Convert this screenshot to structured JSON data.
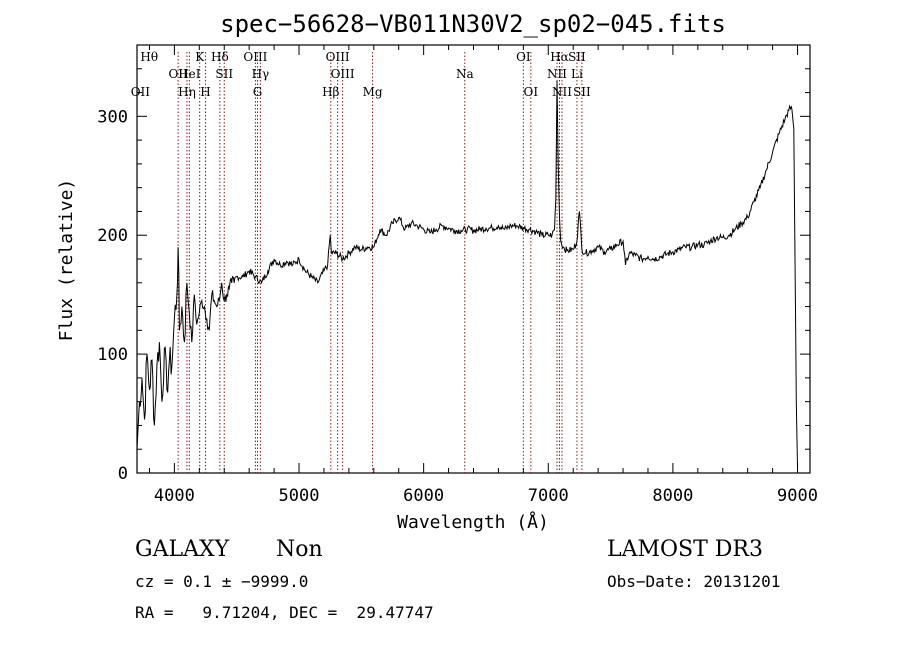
{
  "chart_data": {
    "type": "line",
    "title": "spec−56628−VB011N30V2_sp02−045.fits",
    "xlabel": "Wavelength (Å)",
    "ylabel": "Flux (relative)",
    "xlim": [
      3700,
      9100
    ],
    "ylim": [
      0,
      360
    ],
    "xticks": [
      4000,
      5000,
      6000,
      7000,
      8000,
      9000
    ],
    "yticks": [
      0,
      100,
      200,
      300
    ],
    "grid": false,
    "series": [
      {
        "x": [
          3700,
          3720,
          3740,
          3760,
          3780,
          3800,
          3820,
          3840,
          3860,
          3880,
          3900,
          3920,
          3940,
          3960,
          3980,
          4000,
          4020,
          4030,
          4040,
          4060,
          4080,
          4100,
          4120,
          4140,
          4160,
          4180,
          4200,
          4220,
          4240,
          4260,
          4280,
          4300,
          4320,
          4340,
          4360,
          4380,
          4400,
          4420,
          4440,
          4460,
          4480,
          4500,
          4550,
          4600,
          4650,
          4700,
          4750,
          4800,
          4850,
          4900,
          4950,
          5000,
          5050,
          5100,
          5150,
          5200,
          5230,
          5250,
          5260,
          5300,
          5350,
          5400,
          5450,
          5500,
          5550,
          5600,
          5650,
          5700,
          5750,
          5800,
          5850,
          5900,
          5950,
          6000,
          6050,
          6100,
          6150,
          6200,
          6250,
          6300,
          6350,
          6400,
          6450,
          6500,
          6550,
          6600,
          6650,
          6700,
          6750,
          6800,
          6850,
          6900,
          6950,
          7000,
          7030,
          7050,
          7060,
          7070,
          7080,
          7090,
          7100,
          7120,
          7150,
          7200,
          7230,
          7240,
          7250,
          7270,
          7300,
          7350,
          7400,
          7450,
          7500,
          7550,
          7600,
          7620,
          7650,
          7700,
          7750,
          7800,
          7850,
          7900,
          7950,
          8000,
          8050,
          8100,
          8150,
          8200,
          8250,
          8300,
          8350,
          8400,
          8450,
          8500,
          8550,
          8600,
          8650,
          8700,
          8750,
          8800,
          8850,
          8900,
          8930,
          8950,
          8960,
          8970,
          8980,
          8990,
          9000
        ],
        "y": [
          20,
          60,
          80,
          45,
          100,
          70,
          95,
          40,
          90,
          110,
          60,
          105,
          70,
          95,
          90,
          130,
          150,
          190,
          120,
          140,
          110,
          160,
          135,
          110,
          150,
          125,
          135,
          145,
          140,
          130,
          120,
          150,
          145,
          140,
          145,
          160,
          145,
          150,
          155,
          160,
          160,
          165,
          165,
          170,
          165,
          160,
          170,
          180,
          175,
          178,
          175,
          180,
          170,
          165,
          160,
          170,
          175,
          200,
          185,
          185,
          180,
          185,
          190,
          188,
          190,
          190,
          205,
          200,
          210,
          215,
          205,
          210,
          208,
          205,
          202,
          205,
          208,
          206,
          204,
          204,
          205,
          204,
          205,
          206,
          206,
          208,
          205,
          208,
          208,
          206,
          205,
          203,
          200,
          200,
          200,
          205,
          230,
          330,
          260,
          215,
          195,
          190,
          187,
          188,
          195,
          210,
          220,
          188,
          185,
          187,
          190,
          186,
          188,
          192,
          195,
          175,
          185,
          183,
          180,
          182,
          180,
          182,
          184,
          186,
          188,
          190,
          190,
          192,
          192,
          195,
          198,
          198,
          200,
          205,
          210,
          215,
          228,
          240,
          255,
          270,
          285,
          298,
          305,
          308,
          300,
          290,
          180,
          60,
          5
        ]
      }
    ],
    "lines": [
      {
        "name": "OII",
        "x": 3727,
        "row": 2
      },
      {
        "name": "Hθ",
        "x": 3798,
        "row": 0
      },
      {
        "name": "OII",
        "x": 4030,
        "row": 1
      },
      {
        "name": "Hη",
        "x": 4101,
        "row": 2
      },
      {
        "name": "K",
        "x": 4203,
        "row": 0
      },
      {
        "name": "HeI",
        "x": 4120,
        "row": 1
      },
      {
        "name": "H",
        "x": 4250,
        "row": 2
      },
      {
        "name": "Hδ",
        "x": 4365,
        "row": 0
      },
      {
        "name": "SII",
        "x": 4400,
        "row": 1
      },
      {
        "name": "OIII",
        "x": 4650,
        "row": 0
      },
      {
        "name": "Hγ",
        "x": 4690,
        "row": 1
      },
      {
        "name": "G",
        "x": 4667,
        "row": 2
      },
      {
        "name": "OIII",
        "x": 5310,
        "row": 0
      },
      {
        "name": "OIII",
        "x": 5350,
        "row": 1
      },
      {
        "name": "Hβ",
        "x": 5255,
        "row": 2
      },
      {
        "name": "Mg",
        "x": 5590,
        "row": 2
      },
      {
        "name": "Na",
        "x": 6330,
        "row": 1
      },
      {
        "name": "OI",
        "x": 6800,
        "row": 0
      },
      {
        "name": "OI",
        "x": 6860,
        "row": 2
      },
      {
        "name": "Hα",
        "x": 7090,
        "row": 0
      },
      {
        "name": "SII",
        "x": 7230,
        "row": 0
      },
      {
        "name": "NII",
        "x": 7070,
        "row": 1
      },
      {
        "name": "Li",
        "x": 7230,
        "row": 1
      },
      {
        "name": "NII",
        "x": 7110,
        "row": 2
      },
      {
        "name": "SII",
        "x": 7270,
        "row": 2
      }
    ],
    "line_positions": [
      4030,
      4101,
      4120,
      4203,
      4250,
      4365,
      4400,
      4650,
      4667,
      4690,
      5255,
      5310,
      5350,
      5590,
      6330,
      6800,
      6860,
      7070,
      7090,
      7110,
      7230,
      7270
    ]
  },
  "info": {
    "class": "GALAXY",
    "subclass": "Non",
    "survey": "LAMOST DR3",
    "cz": "cz = 0.1 ± −9999.0",
    "obs_date": "Obs−Date: 20131201",
    "radec": "RA =   9.71204, DEC =  29.47747"
  },
  "colors": {
    "spectrum": "#000000",
    "line_marker": "#8b1a1a",
    "axes": "#000000"
  }
}
